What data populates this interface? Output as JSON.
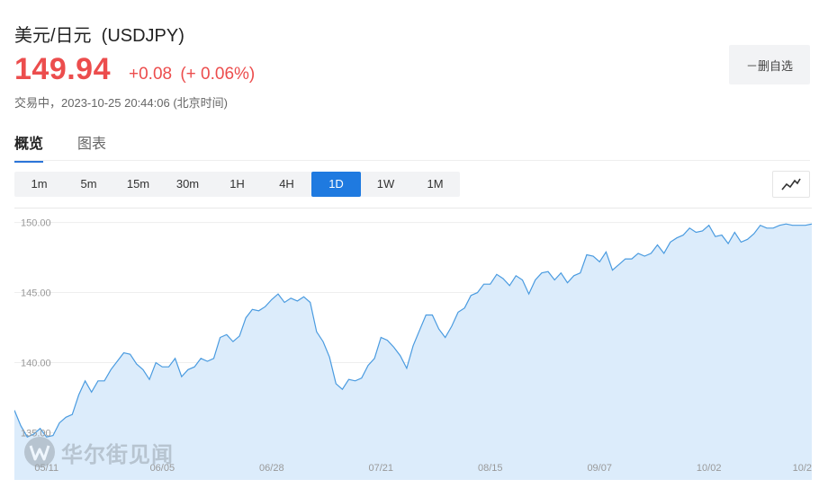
{
  "header": {
    "title": "美元/日元  (USDJPY)",
    "price": "149.94",
    "change": "+0.08",
    "change_pct": "(+ 0.06%)",
    "status": "交易中，2023-10-25 20:44:06 (北京时间)",
    "up_color": "#ec4d4d"
  },
  "watchlist": {
    "label": "－删自选"
  },
  "tabs": [
    {
      "label": "概览",
      "active": true
    },
    {
      "label": "图表",
      "active": false
    }
  ],
  "periods": [
    {
      "label": "1m"
    },
    {
      "label": "5m"
    },
    {
      "label": "15m"
    },
    {
      "label": "30m"
    },
    {
      "label": "1H"
    },
    {
      "label": "4H"
    },
    {
      "label": "1D",
      "active": true
    },
    {
      "label": "1W"
    },
    {
      "label": "1M"
    }
  ],
  "chart_type_button": {
    "icon": "line-chart-icon"
  },
  "watermark": {
    "text": "华尔街见闻",
    "icon": "wallstreetcn-logo-icon"
  },
  "chart_data": {
    "type": "area",
    "title": "",
    "xlabel": "",
    "ylabel": "",
    "ylim": [
      133.3,
      151.0
    ],
    "yticks": [
      135.0,
      140.0,
      145.0,
      150.0
    ],
    "ytick_labels": [
      "135.00",
      "140.00",
      "145.00",
      "150.00"
    ],
    "xtick_labels": [
      "05/11",
      "06/05",
      "06/28",
      "07/21",
      "08/15",
      "09/07",
      "10/02",
      "10/2"
    ],
    "xtick_index": [
      5,
      23,
      40,
      57,
      74,
      91,
      108,
      124
    ],
    "grid": true,
    "line_color": "#4a9be0",
    "fill_color": "#dcecfb",
    "series": [
      {
        "values": [
          136.6,
          135.5,
          134.7,
          134.9,
          135.3,
          134.7,
          134.8,
          135.7,
          136.1,
          136.3,
          137.7,
          138.7,
          137.9,
          138.7,
          138.7,
          139.5,
          140.1,
          140.7,
          140.6,
          139.9,
          139.5,
          138.8,
          140.0,
          139.7,
          139.7,
          140.3,
          139.0,
          139.5,
          139.7,
          140.3,
          140.1,
          140.3,
          141.8,
          142.0,
          141.5,
          141.9,
          143.2,
          143.8,
          143.7,
          144.0,
          144.5,
          144.9,
          144.3,
          144.6,
          144.4,
          144.7,
          144.3,
          142.2,
          141.5,
          140.4,
          138.5,
          138.1,
          138.8,
          138.7,
          138.9,
          139.8,
          140.3,
          141.8,
          141.6,
          141.1,
          140.5,
          139.6,
          141.2,
          142.3,
          143.4,
          143.4,
          142.4,
          141.8,
          142.6,
          143.6,
          143.9,
          144.8,
          145.0,
          145.6,
          145.6,
          146.3,
          146.0,
          145.5,
          146.2,
          145.9,
          144.9,
          145.9,
          146.4,
          146.5,
          145.9,
          146.4,
          145.7,
          146.2,
          146.4,
          147.7,
          147.6,
          147.2,
          147.9,
          146.6,
          147.0,
          147.4,
          147.4,
          147.8,
          147.6,
          147.8,
          148.4,
          147.8,
          148.6,
          148.9,
          149.1,
          149.6,
          149.3,
          149.4,
          149.8,
          149.0,
          149.1,
          148.5,
          149.3,
          148.6,
          148.8,
          149.2,
          149.8,
          149.6,
          149.6,
          149.8,
          149.9,
          149.8,
          149.8,
          149.8,
          149.9
        ]
      }
    ]
  }
}
